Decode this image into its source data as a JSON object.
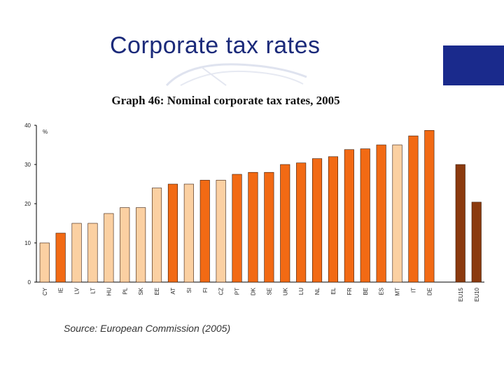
{
  "slide": {
    "title": "Corporate tax rates",
    "accent_color": "#1a2a8c",
    "title_color": "#1b2a7a"
  },
  "chart_data": {
    "type": "bar",
    "title": "Graph 46: Nominal corporate tax rates, 2005",
    "ylabel": "%",
    "xlabel": "",
    "ylim": [
      0,
      40
    ],
    "yticks": [
      0,
      10,
      20,
      30,
      40
    ],
    "grid": false,
    "categories": [
      "CY",
      "IE",
      "LV",
      "LT",
      "HU",
      "PL",
      "SK",
      "EE",
      "AT",
      "SI",
      "FI",
      "CZ",
      "PT",
      "DK",
      "SE",
      "UK",
      "LU",
      "NL",
      "EL",
      "FR",
      "BE",
      "ES",
      "MT",
      "IT",
      "DE",
      "EU15",
      "EU10"
    ],
    "values": [
      10,
      12.5,
      15,
      15,
      17.5,
      19,
      19,
      24,
      25,
      25,
      26,
      26,
      27.5,
      28,
      28,
      30,
      30.4,
      31.5,
      32,
      33.8,
      34,
      35,
      35,
      37.3,
      38.7,
      30,
      20.4
    ],
    "colors": [
      "#fbd0a2",
      "#f26a14",
      "#fbd0a2",
      "#fbd0a2",
      "#fbd0a2",
      "#fbd0a2",
      "#fbd0a2",
      "#fbd0a2",
      "#f26a14",
      "#fbd0a2",
      "#f26a14",
      "#fbd0a2",
      "#f26a14",
      "#f26a14",
      "#f26a14",
      "#f26a14",
      "#f26a14",
      "#f26a14",
      "#f26a14",
      "#f26a14",
      "#f26a14",
      "#f26a14",
      "#fbd0a2",
      "#f26a14",
      "#f26a14",
      "#8b3a0e",
      "#8b3a0e"
    ],
    "source": "Source: European Commission (2005)"
  }
}
